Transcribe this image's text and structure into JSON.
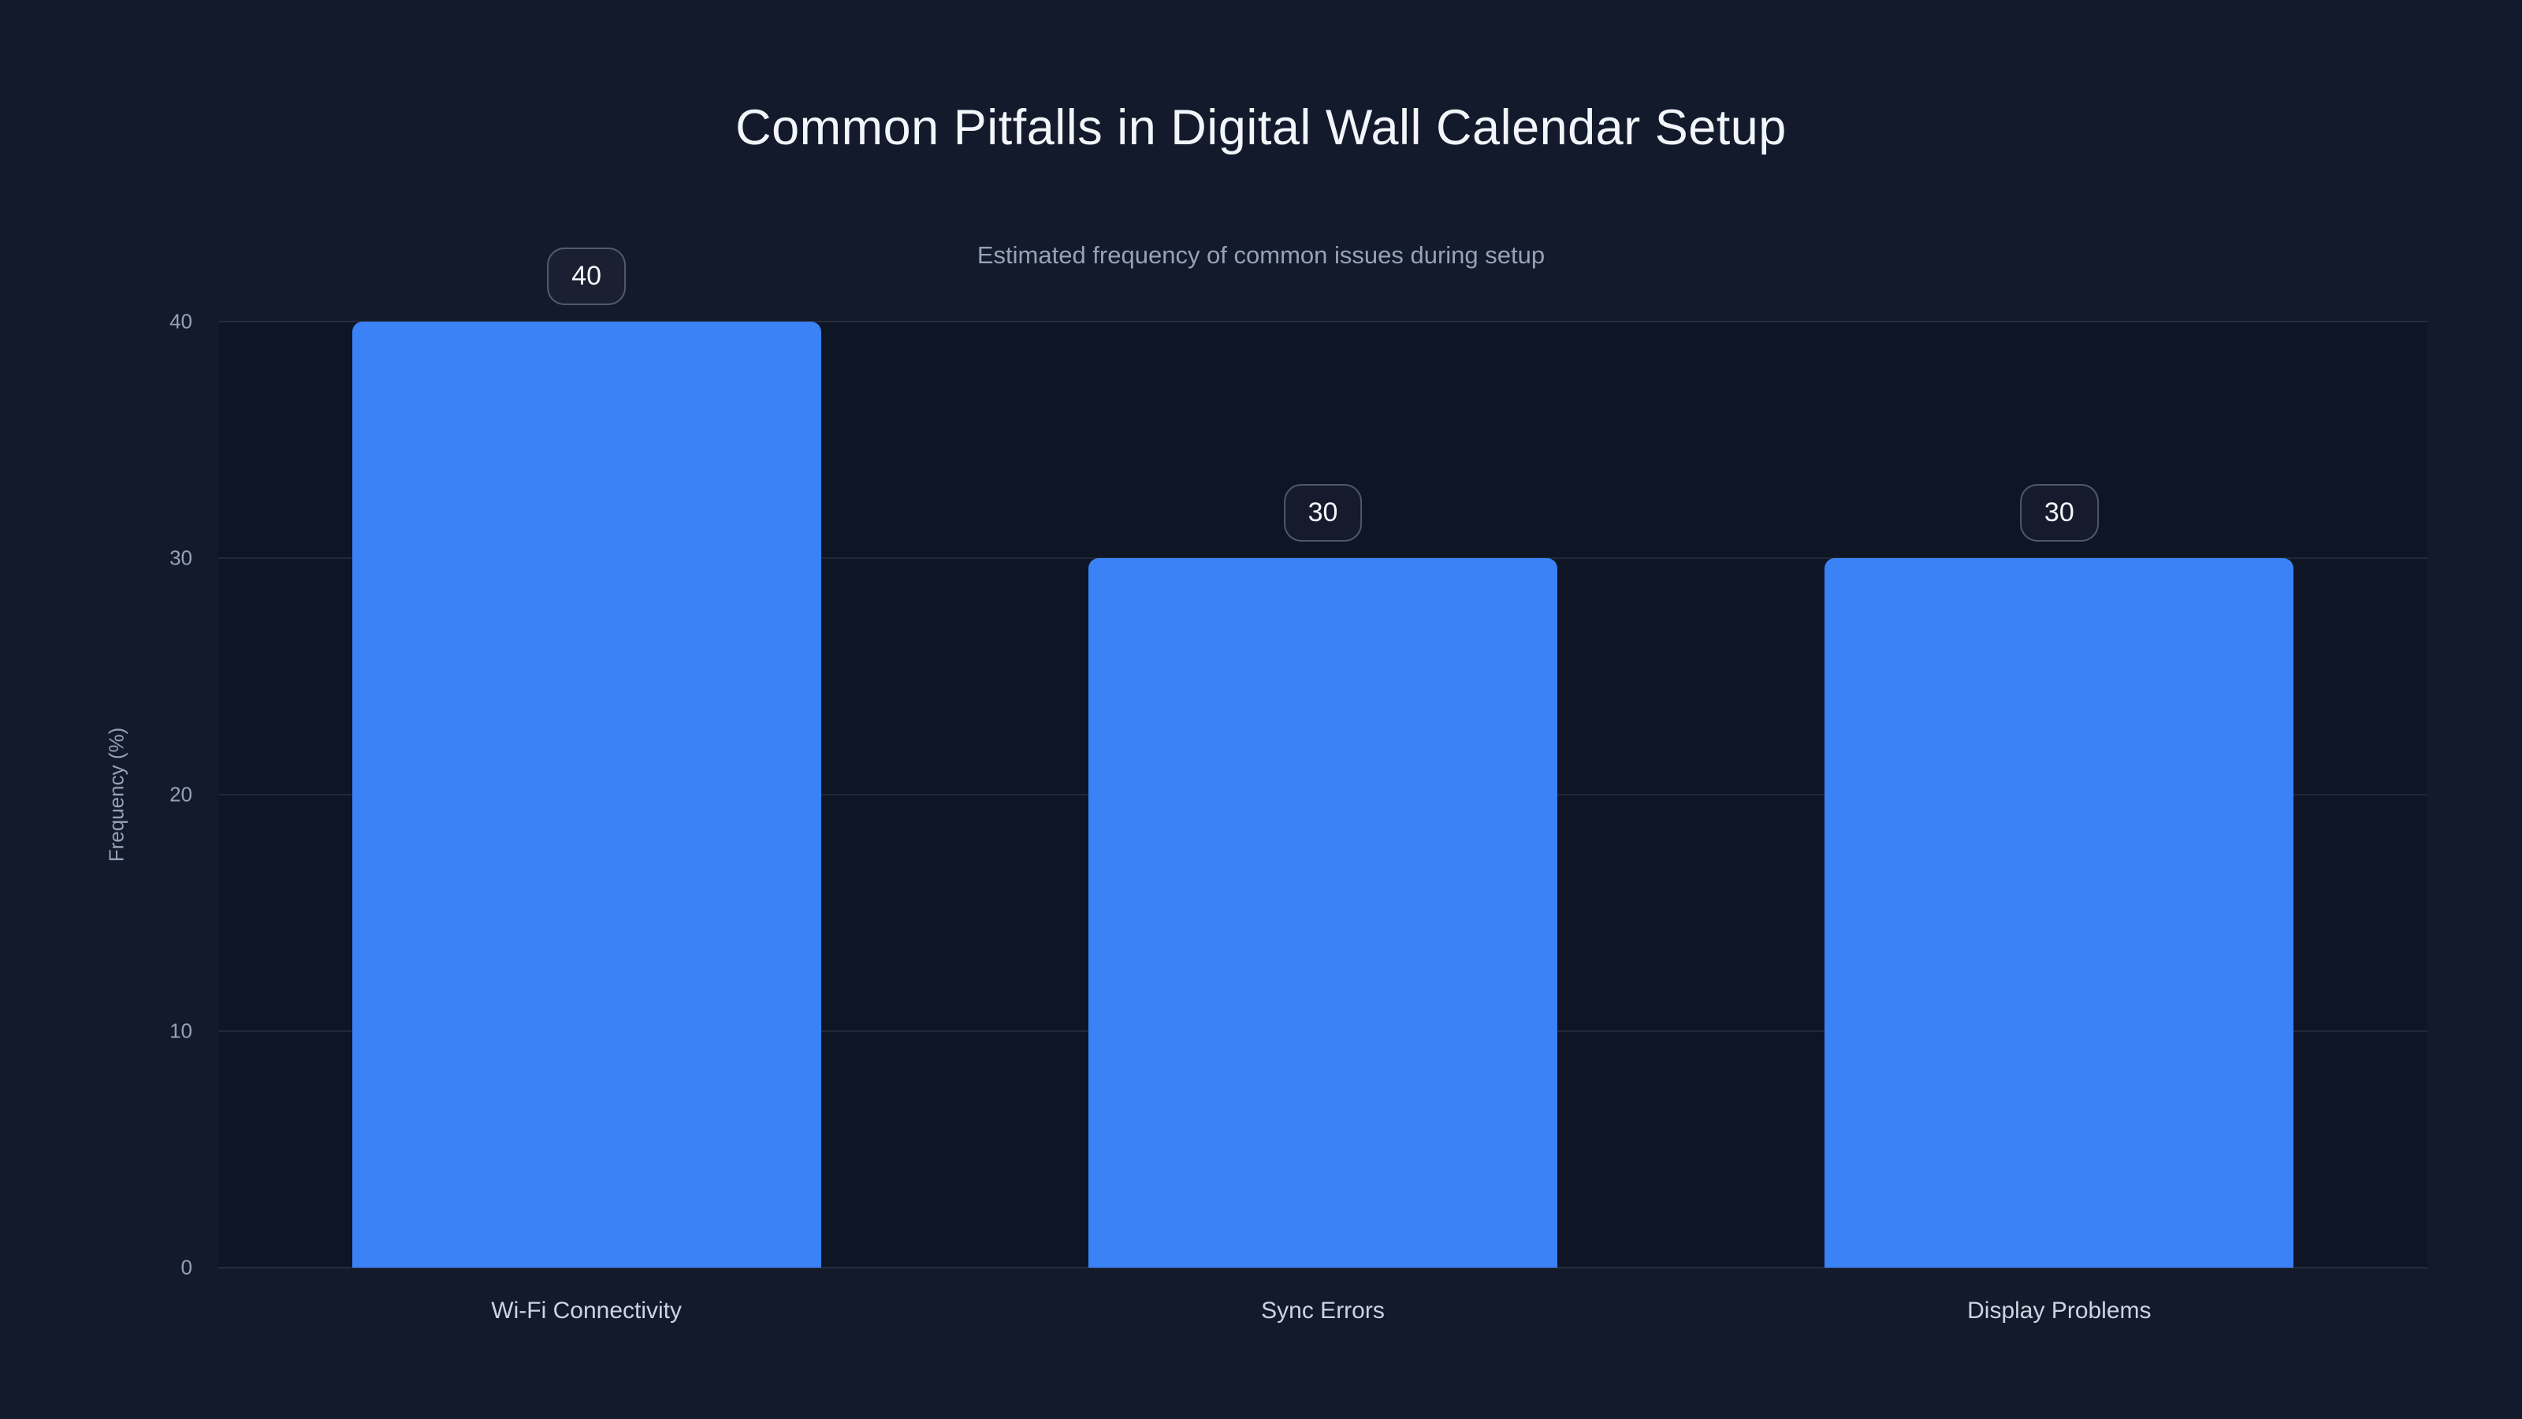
{
  "colors": {
    "background": "#131a2b",
    "plot_background": "#0e1525",
    "bar_fill": "#3b82f6",
    "gridline": "rgba(148,163,184,0.14)",
    "title_text": "#f2f6fb",
    "subtitle_text": "#94a3b8",
    "tick_text": "#94a3b8",
    "category_text": "#cbd5e1",
    "badge_text": "#f5f8fc",
    "badge_border": "rgba(148,163,184,0.45)",
    "badge_background": "rgba(148,163,184,0.05)"
  },
  "chart_data": {
    "type": "bar",
    "title": "Common Pitfalls in Digital Wall Calendar Setup",
    "subtitle": "Estimated frequency of common issues during setup",
    "ylabel": "Frequency (%)",
    "xlabel": "",
    "categories": [
      "Wi-Fi Connectivity",
      "Sync Errors",
      "Display Problems"
    ],
    "values": [
      40,
      30,
      30
    ],
    "bar_value_labels": [
      "40",
      "30",
      "30"
    ],
    "ylim": [
      0,
      40
    ],
    "yticks": [
      0,
      10,
      20,
      30,
      40
    ],
    "grid": "horizontal",
    "legend": false,
    "bar_orientation": "vertical"
  }
}
